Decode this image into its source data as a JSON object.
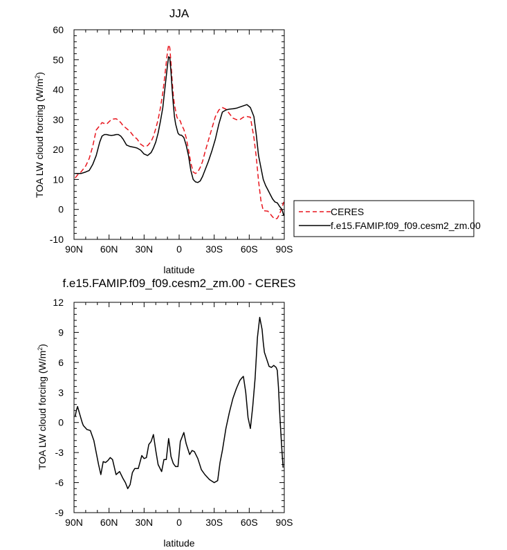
{
  "chart_data": [
    {
      "type": "line",
      "title": "JJA",
      "xlabel": "latitude",
      "ylabel": "TOA LW cloud forcing (W/m",
      "ylabel_sup": "2",
      "ylabel_close": ")",
      "xlim": [
        90,
        -90
      ],
      "ylim": [
        -10,
        60
      ],
      "x_ticks": [
        90,
        60,
        30,
        0,
        -30,
        -60,
        -90
      ],
      "x_tick_labels": [
        "90N",
        "60N",
        "30N",
        "0",
        "30S",
        "60S",
        "90S"
      ],
      "y_ticks": [
        -10,
        0,
        10,
        20,
        30,
        40,
        50,
        60
      ],
      "y_tick_labels": [
        "-10",
        "0",
        "10",
        "20",
        "30",
        "40",
        "50",
        "60"
      ],
      "legend": {
        "position": "right",
        "entries": [
          {
            "label": "CERES",
            "color": "#e8141c",
            "dash": "dashed"
          },
          {
            "label": "f.e15.FAMIP.f09_f09.cesm2_zm.00",
            "color": "#000000",
            "dash": "solid"
          }
        ]
      },
      "series": [
        {
          "name": "CERES",
          "color": "#e8141c",
          "dash": "dashed",
          "x": [
            89,
            87,
            84,
            80,
            77,
            74,
            71,
            68,
            66,
            64,
            62,
            60,
            58,
            56,
            54,
            52,
            50,
            48,
            45,
            42,
            39,
            36,
            33,
            30,
            27,
            24,
            22,
            20,
            18,
            16,
            14,
            13,
            12,
            11,
            10,
            9,
            8,
            7,
            6,
            5,
            4,
            3,
            2,
            1,
            0,
            -1,
            -2,
            -4,
            -6,
            -8,
            -10,
            -12,
            -14,
            -16,
            -18,
            -20,
            -22,
            -25,
            -28,
            -31,
            -34,
            -37,
            -40,
            -43,
            -46,
            -49,
            -52,
            -55,
            -58,
            -61,
            -64,
            -66,
            -68,
            -70,
            -72,
            -74,
            -76,
            -78,
            -80,
            -82,
            -84,
            -86,
            -88,
            -89.5
          ],
          "y": [
            10.5,
            11.5,
            12.5,
            14.5,
            17,
            21,
            26.5,
            28,
            29,
            28.7,
            28.5,
            29.3,
            30,
            30.2,
            30.3,
            29.8,
            29,
            28,
            27,
            26,
            24.5,
            23.5,
            21.8,
            21,
            21.3,
            22.7,
            24.4,
            27,
            30,
            34,
            39,
            42,
            45.5,
            49,
            52.5,
            55,
            54,
            49,
            43,
            38,
            35,
            33,
            31,
            30,
            30,
            29.5,
            28.3,
            26.7,
            24,
            20,
            15.5,
            12.5,
            12,
            12.5,
            14,
            16,
            19,
            23,
            27,
            31,
            33.2,
            34,
            33.5,
            32,
            30.5,
            30,
            30,
            30.8,
            31,
            30.8,
            24,
            17.5,
            9.5,
            3,
            -0.4,
            -0.5,
            -0.6,
            -1.5,
            -2.5,
            -3.2,
            -3,
            -1.5,
            0.5,
            2.5
          ]
        },
        {
          "name": "f.e15.FAMIP.f09_f09.cesm2_zm.00",
          "color": "#000000",
          "dash": "solid",
          "x": [
            89,
            87,
            84,
            80,
            77,
            74,
            71,
            68,
            66,
            64,
            62,
            60,
            58,
            56,
            54,
            52,
            50,
            48,
            45,
            42,
            39,
            36,
            33,
            30,
            27,
            24,
            22,
            20,
            18,
            16,
            14,
            13,
            12,
            11,
            10,
            9,
            8,
            7,
            6,
            5,
            4,
            3,
            2,
            1,
            0,
            -1,
            -2,
            -4,
            -6,
            -8,
            -10,
            -12,
            -14,
            -16,
            -18,
            -20,
            -22,
            -25,
            -28,
            -31,
            -34,
            -37,
            -40,
            -43,
            -46,
            -49,
            -52,
            -55,
            -58,
            -61,
            -64,
            -66,
            -68,
            -70,
            -72,
            -74,
            -76,
            -78,
            -80,
            -82,
            -84,
            -86,
            -88,
            -89.5
          ],
          "y": [
            12,
            12,
            12,
            12.5,
            13,
            15,
            18,
            22.5,
            24.5,
            25,
            25,
            24.8,
            24.7,
            24.8,
            25,
            25,
            24.5,
            23.5,
            21.5,
            21,
            20.8,
            20.5,
            19.8,
            18.5,
            18,
            19,
            20.5,
            22.5,
            25.5,
            29.5,
            34,
            37.5,
            41,
            44.5,
            48,
            51,
            50.6,
            46,
            40,
            35,
            31,
            28.5,
            27,
            25.5,
            25,
            24.8,
            24.8,
            24,
            21.5,
            18,
            13,
            10,
            9.2,
            9,
            9.5,
            11,
            13,
            16,
            19.5,
            23.5,
            28.5,
            32.5,
            33.2,
            33.5,
            33.6,
            33.8,
            34.2,
            34.6,
            35,
            34,
            31,
            25,
            18,
            14,
            10,
            8,
            6.5,
            5,
            3.5,
            2.5,
            2.2,
            1,
            0,
            -2
          ]
        }
      ]
    },
    {
      "type": "line",
      "title": "f.e15.FAMIP.f09_f09.cesm2_zm.00 - CERES",
      "xlabel": "latitude",
      "ylabel": "TOA LW cloud forcing (W/m",
      "ylabel_sup": "2",
      "ylabel_close": ")",
      "xlim": [
        90,
        -90
      ],
      "ylim": [
        -9,
        12
      ],
      "x_ticks": [
        90,
        60,
        30,
        0,
        -30,
        -60,
        -90
      ],
      "x_tick_labels": [
        "90N",
        "60N",
        "30N",
        "0",
        "30S",
        "60S",
        "90S"
      ],
      "y_ticks": [
        -9,
        -6,
        -3,
        0,
        3,
        6,
        9,
        12
      ],
      "y_tick_labels": [
        "-9",
        "-6",
        "-3",
        "0",
        "3",
        "6",
        "9",
        "12"
      ],
      "series": [
        {
          "name": "f.e15.FAMIP.f09_f09.cesm2_zm.00 - CERES",
          "color": "#000000",
          "dash": "solid",
          "x": [
            89,
            88,
            87,
            85,
            83,
            82,
            79,
            76,
            73,
            71,
            69,
            67,
            65,
            63,
            61,
            59,
            57,
            54,
            51,
            48,
            46,
            44,
            42,
            40,
            38,
            35,
            32,
            30,
            28,
            26,
            24,
            22,
            20,
            18,
            15,
            13,
            11,
            9,
            8,
            7,
            5,
            3,
            1,
            -1,
            -4,
            -6,
            -9,
            -11,
            -13,
            -16,
            -19,
            -22,
            -26,
            -30,
            -33,
            -35,
            -37,
            -40,
            -43,
            -46,
            -49,
            -52,
            -54,
            -55,
            -57,
            -59,
            -61,
            -63,
            -65,
            -67,
            -69,
            -71,
            -72,
            -73,
            -75,
            -77,
            -79,
            -81,
            -83,
            -84,
            -85,
            -86,
            -87,
            -88,
            -89
          ],
          "y": [
            0.6,
            1.2,
            1.6,
            0.8,
            0,
            -0.3,
            -0.7,
            -0.8,
            -1.8,
            -3,
            -4.2,
            -5.2,
            -3.9,
            -4,
            -3.8,
            -3.5,
            -3.7,
            -5.2,
            -4.9,
            -5.6,
            -6,
            -6.6,
            -6.2,
            -5,
            -4.6,
            -4.6,
            -3.3,
            -3.6,
            -3.5,
            -2.2,
            -1.9,
            -1.2,
            -2.8,
            -4.2,
            -4.9,
            -3.7,
            -3.7,
            -1.6,
            -2.4,
            -3.4,
            -4.1,
            -4.4,
            -4.4,
            -1.9,
            -1,
            -2.1,
            -3.2,
            -2.8,
            -2.9,
            -3.6,
            -4.7,
            -5.2,
            -5.7,
            -6,
            -5.8,
            -4,
            -2.8,
            -0.6,
            1,
            2.4,
            3.4,
            4.2,
            4.5,
            4.6,
            3,
            0.5,
            -0.6,
            1.6,
            4.4,
            8.5,
            10.5,
            9.3,
            8,
            7,
            6.3,
            5.6,
            5.5,
            5.7,
            5.5,
            5.2,
            3.5,
            1.2,
            -0.9,
            -2.8,
            -4.5
          ]
        }
      ]
    }
  ]
}
